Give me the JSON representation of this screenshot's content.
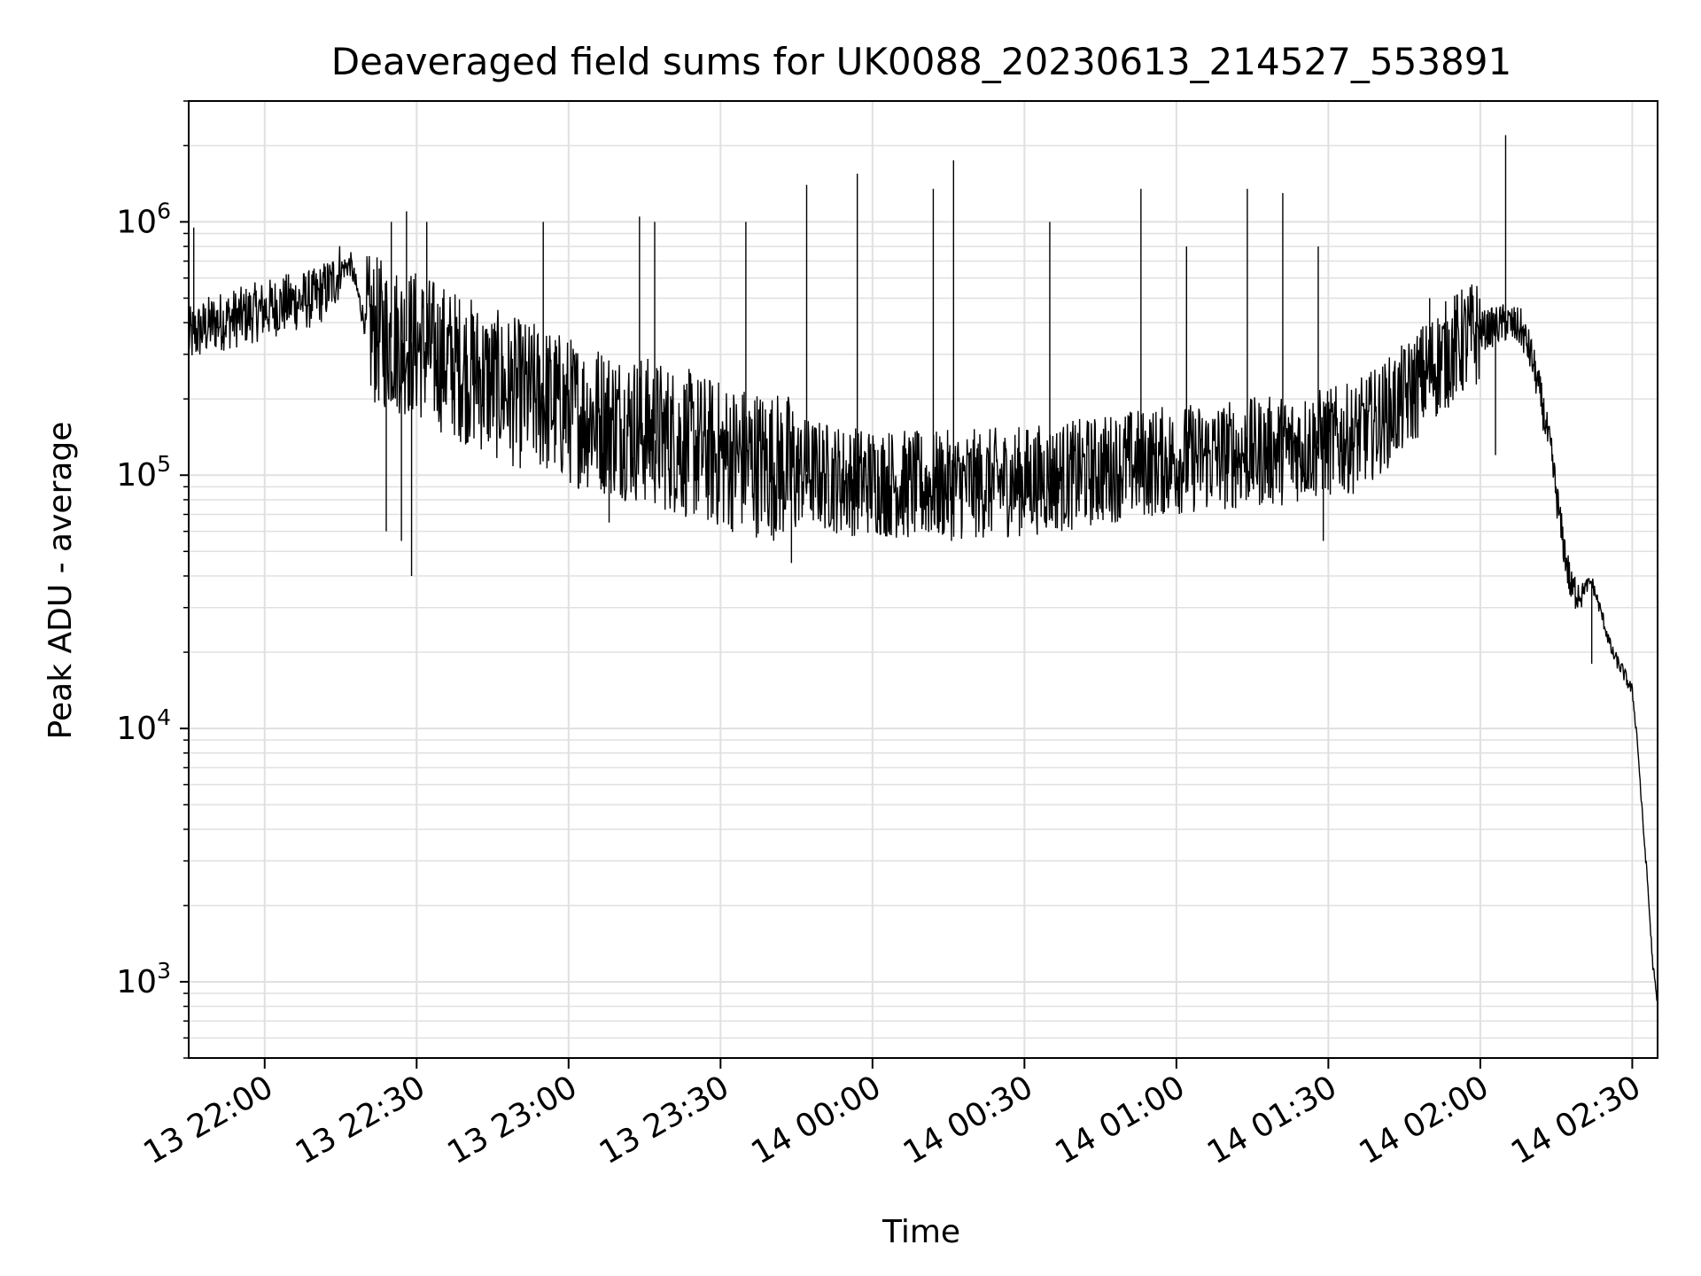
{
  "chart_data": {
    "type": "line",
    "title": "Deaveraged field sums for UK0088_20230613_214527_553891",
    "xlabel": "Time",
    "ylabel": "Peak ADU - average",
    "y_scale": "log",
    "ylim": [
      500,
      3000000
    ],
    "xlim": [
      "13 21:45",
      "14 02:35"
    ],
    "grid": true,
    "line_color": "#000000",
    "grid_color": "#e0e0e0",
    "x_ticks": [
      {
        "value": "13 22:00",
        "label": "13 22:00"
      },
      {
        "value": "13 22:30",
        "label": "13 22:30"
      },
      {
        "value": "13 23:00",
        "label": "13 23:00"
      },
      {
        "value": "13 23:30",
        "label": "13 23:30"
      },
      {
        "value": "14 00:00",
        "label": "14 00:00"
      },
      {
        "value": "14 00:30",
        "label": "14 00:30"
      },
      {
        "value": "14 01:00",
        "label": "14 01:00"
      },
      {
        "value": "14 01:30",
        "label": "14 01:30"
      },
      {
        "value": "14 02:00",
        "label": "14 02:00"
      },
      {
        "value": "14 02:30",
        "label": "14 02:30"
      }
    ],
    "y_ticks": [
      {
        "value": 1000,
        "base": "10",
        "exp": "3"
      },
      {
        "value": 10000,
        "base": "10",
        "exp": "4"
      },
      {
        "value": 100000,
        "base": "10",
        "exp": "5"
      },
      {
        "value": 1000000,
        "base": "10",
        "exp": "6"
      }
    ],
    "series": [
      {
        "points": [
          [
            "13 21:45",
            350000
          ],
          [
            "13 21:50",
            400000
          ],
          [
            "13 21:55",
            420000
          ],
          [
            "13 22:00",
            450000
          ],
          [
            "13 22:05",
            480000
          ],
          [
            "13 22:10",
            500000
          ],
          [
            "13 22:13",
            560000
          ],
          [
            "13 22:15",
            650000
          ],
          [
            "13 22:17",
            680000
          ],
          [
            "13 22:18",
            560000
          ],
          [
            "13 22:20",
            380000
          ],
          [
            "13 22:25",
            350000
          ],
          [
            "13 22:30",
            330000
          ],
          [
            "13 22:35",
            290000
          ],
          [
            "13 22:40",
            260000
          ],
          [
            "13 22:45",
            230000
          ],
          [
            "13 22:50",
            210000
          ],
          [
            "13 22:55",
            200000
          ],
          [
            "13 23:00",
            180000
          ],
          [
            "13 23:05",
            170000
          ],
          [
            "13 23:10",
            160000
          ],
          [
            "13 23:15",
            150000
          ],
          [
            "13 23:20",
            140000
          ],
          [
            "13 23:25",
            130000
          ],
          [
            "13 23:30",
            120000
          ],
          [
            "13 23:35",
            115000
          ],
          [
            "13 23:40",
            110000
          ],
          [
            "13 23:45",
            105000
          ],
          [
            "13 23:50",
            100000
          ],
          [
            "13 23:55",
            95000
          ],
          [
            "14 00:00",
            95000
          ],
          [
            "14 00:10",
            90000
          ],
          [
            "14 00:20",
            92000
          ],
          [
            "14 00:30",
            95000
          ],
          [
            "14 00:40",
            100000
          ],
          [
            "14 00:50",
            110000
          ],
          [
            "14 01:00",
            115000
          ],
          [
            "14 01:10",
            120000
          ],
          [
            "14 01:20",
            125000
          ],
          [
            "14 01:30",
            135000
          ],
          [
            "14 01:35",
            140000
          ],
          [
            "14 01:40",
            165000
          ],
          [
            "14 01:45",
            200000
          ],
          [
            "14 01:50",
            260000
          ],
          [
            "14 01:55",
            320000
          ],
          [
            "14 02:00",
            370000
          ],
          [
            "14 02:05",
            400000
          ],
          [
            "14 02:08",
            380000
          ],
          [
            "14 02:10",
            300000
          ],
          [
            "14 02:12",
            200000
          ],
          [
            "14 02:14",
            120000
          ],
          [
            "14 02:16",
            60000
          ],
          [
            "14 02:18",
            35000
          ],
          [
            "14 02:20",
            35000
          ],
          [
            "14 02:22",
            38000
          ],
          [
            "14 02:24",
            28000
          ],
          [
            "14 02:26",
            20000
          ],
          [
            "14 02:28",
            17000
          ],
          [
            "14 02:30",
            14000
          ],
          [
            "14 02:31",
            9000
          ],
          [
            "14 02:32",
            4500
          ],
          [
            "14 02:33",
            2500
          ],
          [
            "14 02:34",
            1200
          ],
          [
            "14 02:35",
            800
          ]
        ]
      }
    ],
    "spikes": [
      [
        "13 21:46",
        950000
      ],
      [
        "13 22:25",
        1000000
      ],
      [
        "13 22:28",
        1100000
      ],
      [
        "13 22:32",
        1000000
      ],
      [
        "13 22:55",
        1000000
      ],
      [
        "13 23:14",
        1050000
      ],
      [
        "13 23:17",
        1000000
      ],
      [
        "13 23:35",
        1000000
      ],
      [
        "13 23:47",
        1400000
      ],
      [
        "13 23:57",
        1550000
      ],
      [
        "14 00:12",
        1350000
      ],
      [
        "14 00:16",
        1750000
      ],
      [
        "14 00:35",
        1000000
      ],
      [
        "14 00:53",
        1350000
      ],
      [
        "14 01:02",
        800000
      ],
      [
        "14 01:14",
        1350000
      ],
      [
        "14 01:21",
        1300000
      ],
      [
        "14 01:28",
        800000
      ],
      [
        "14 01:50",
        500000
      ],
      [
        "14 02:05",
        2200000
      ]
    ],
    "dips": [
      [
        "13 22:24",
        60000
      ],
      [
        "13 22:27",
        55000
      ],
      [
        "13 22:29",
        40000
      ],
      [
        "13 23:08",
        65000
      ],
      [
        "13 23:44",
        45000
      ],
      [
        "14 01:29",
        55000
      ],
      [
        "14 02:03",
        120000
      ],
      [
        "14 02:22",
        18000
      ]
    ]
  }
}
